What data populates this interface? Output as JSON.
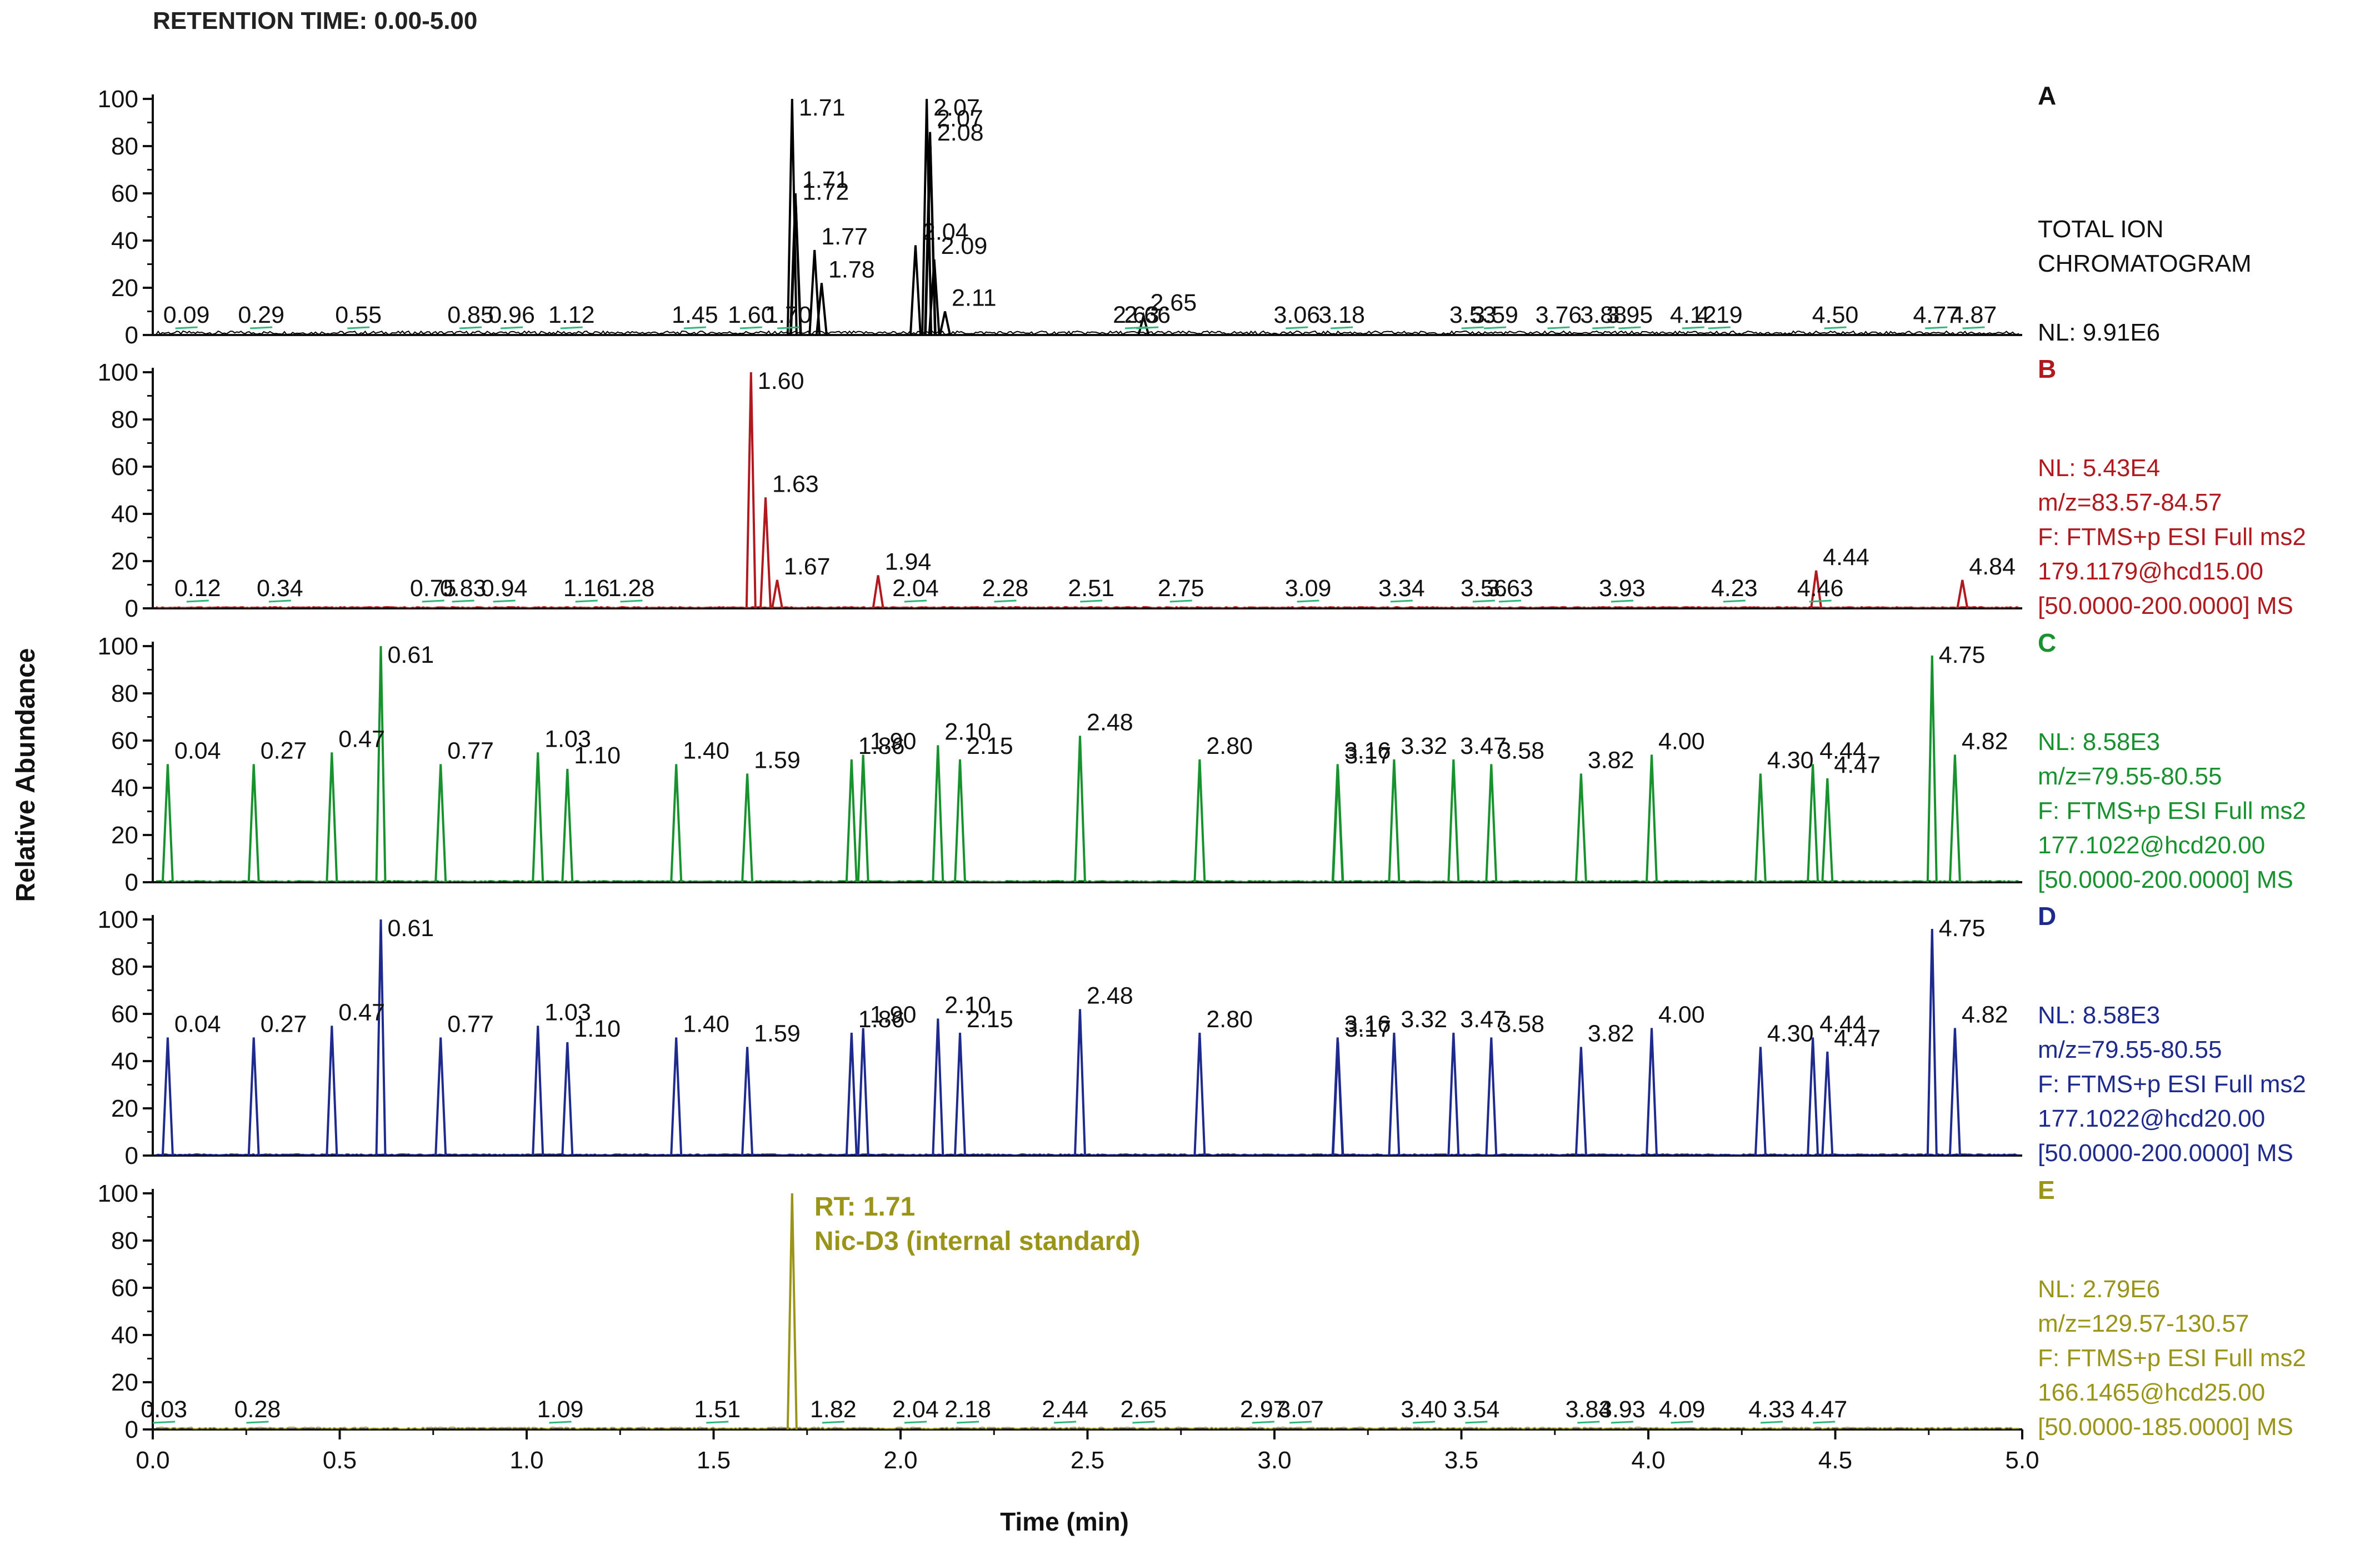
{
  "title": "RETENTION TIME: 0.00-5.00",
  "chart_data": {
    "type": "line",
    "xlabel": "Time (min)",
    "ylabel": "Relative Abundance",
    "xlim": [
      0.0,
      5.0
    ],
    "x_ticks": [
      "0.0",
      "0.5",
      "1.0",
      "1.5",
      "2.0",
      "2.5",
      "3.0",
      "3.5",
      "4.0",
      "4.5",
      "5.0"
    ],
    "ylim": [
      0,
      100
    ],
    "y_ticks": [
      "0",
      "20",
      "40",
      "60",
      "80",
      "100"
    ],
    "panels": [
      {
        "id": "A",
        "color": "#000000",
        "info": [
          "TOTAL ION",
          "CHROMATOGRAM",
          "",
          "NL: 9.91E6"
        ],
        "peaks": [
          {
            "rt": 1.71,
            "height": 100,
            "label": "1.71"
          },
          {
            "rt": 1.71,
            "height": 60,
            "label": "1.71"
          },
          {
            "rt": 1.72,
            "height": 55,
            "label": "1.72"
          },
          {
            "rt": 1.77,
            "height": 36,
            "label": "1.77"
          },
          {
            "rt": 1.78,
            "height": 22,
            "label": "1.78"
          },
          {
            "rt": 2.04,
            "height": 38,
            "label": "2.04"
          },
          {
            "rt": 2.07,
            "height": 100,
            "label": "2.07"
          },
          {
            "rt": 2.07,
            "height": 86,
            "label": "2.07"
          },
          {
            "rt": 2.08,
            "height": 80,
            "label": "2.08"
          },
          {
            "rt": 2.09,
            "height": 32,
            "label": "2.09"
          },
          {
            "rt": 2.11,
            "height": 10,
            "label": "2.11"
          },
          {
            "rt": 2.65,
            "height": 8,
            "label": "2.65"
          }
        ],
        "baseline_labels": [
          "0.09",
          "0.29",
          "0.55",
          "0.85",
          "0.96",
          "1.12",
          "1.45",
          "1.60",
          "1.70",
          "2.63",
          "2.66",
          "3.06",
          "3.18",
          "3.53",
          "3.59",
          "3.76",
          "3.88",
          "3.95",
          "4.12",
          "4.19",
          "4.50",
          "4.77",
          "4.87"
        ]
      },
      {
        "id": "B",
        "color": "#b0191e",
        "info": [
          "NL: 5.43E4",
          "m/z=83.57-84.57",
          "F: FTMS+p ESI Full ms2",
          "179.1179@hcd15.00",
          "[50.0000-200.0000] MS"
        ],
        "peaks": [
          {
            "rt": 1.6,
            "height": 100,
            "label": "1.60"
          },
          {
            "rt": 1.63,
            "height": 47,
            "label": "1.63"
          },
          {
            "rt": 1.67,
            "height": 12,
            "label": "1.67"
          },
          {
            "rt": 1.94,
            "height": 14,
            "label": "1.94"
          },
          {
            "rt": 4.44,
            "height": 16,
            "label": "4.44"
          },
          {
            "rt": 4.84,
            "height": 12,
            "label": "4.84"
          }
        ],
        "baseline_labels": [
          "0.12",
          "0.34",
          "0.75",
          "0.83",
          "0.94",
          "1.16",
          "1.28",
          "2.04",
          "2.28",
          "2.51",
          "2.75",
          "3.09",
          "3.34",
          "3.56",
          "3.63",
          "3.93",
          "4.23",
          "4.46"
        ]
      },
      {
        "id": "C",
        "color": "#18922f",
        "info": [
          "NL: 8.58E3",
          "m/z=79.55-80.55",
          "F: FTMS+p ESI Full ms2",
          "177.1022@hcd20.00",
          "[50.0000-200.0000] MS"
        ],
        "peaks": [
          {
            "rt": 0.61,
            "height": 100,
            "label": "0.61"
          },
          {
            "rt": 4.75,
            "height": 96,
            "label": "4.75"
          },
          {
            "rt": 0.04,
            "height": 50,
            "label": "0.04"
          },
          {
            "rt": 0.27,
            "height": 50,
            "label": "0.27"
          },
          {
            "rt": 0.47,
            "height": 55,
            "label": "0.47"
          },
          {
            "rt": 0.77,
            "height": 50,
            "label": "0.77"
          },
          {
            "rt": 1.03,
            "height": 55,
            "label": "1.03"
          },
          {
            "rt": 1.1,
            "height": 48,
            "label": "1.10"
          },
          {
            "rt": 1.4,
            "height": 50,
            "label": "1.40"
          },
          {
            "rt": 1.59,
            "height": 46,
            "label": "1.59"
          },
          {
            "rt": 1.86,
            "height": 52,
            "label": "1.86"
          },
          {
            "rt": 1.9,
            "height": 54,
            "label": "1.90"
          },
          {
            "rt": 2.1,
            "height": 58,
            "label": "2.10"
          },
          {
            "rt": 2.15,
            "height": 52,
            "label": "2.15"
          },
          {
            "rt": 2.48,
            "height": 62,
            "label": "2.48"
          },
          {
            "rt": 2.8,
            "height": 52,
            "label": "2.80"
          },
          {
            "rt": 3.16,
            "height": 50,
            "label": "3.16"
          },
          {
            "rt": 3.17,
            "height": 48,
            "label": "3.17"
          },
          {
            "rt": 3.32,
            "height": 52,
            "label": "3.32"
          },
          {
            "rt": 3.47,
            "height": 52,
            "label": "3.47"
          },
          {
            "rt": 3.58,
            "height": 50,
            "label": "3.58"
          },
          {
            "rt": 3.82,
            "height": 46,
            "label": "3.82"
          },
          {
            "rt": 4.0,
            "height": 54,
            "label": "4.00"
          },
          {
            "rt": 4.3,
            "height": 46,
            "label": "4.30"
          },
          {
            "rt": 4.44,
            "height": 50,
            "label": "4.44"
          },
          {
            "rt": 4.47,
            "height": 44,
            "label": "4.47"
          },
          {
            "rt": 4.82,
            "height": 54,
            "label": "4.82"
          }
        ],
        "baseline_labels": []
      },
      {
        "id": "D",
        "color": "#1e2a8c",
        "info": [
          "NL: 8.58E3",
          "m/z=79.55-80.55",
          "F: FTMS+p ESI Full ms2",
          "177.1022@hcd20.00",
          "[50.0000-200.0000] MS"
        ],
        "peaks": [
          {
            "rt": 0.61,
            "height": 100,
            "label": "0.61"
          },
          {
            "rt": 4.75,
            "height": 96,
            "label": "4.75"
          },
          {
            "rt": 0.04,
            "height": 50,
            "label": "0.04"
          },
          {
            "rt": 0.27,
            "height": 50,
            "label": "0.27"
          },
          {
            "rt": 0.47,
            "height": 55,
            "label": "0.47"
          },
          {
            "rt": 0.77,
            "height": 50,
            "label": "0.77"
          },
          {
            "rt": 1.03,
            "height": 55,
            "label": "1.03"
          },
          {
            "rt": 1.1,
            "height": 48,
            "label": "1.10"
          },
          {
            "rt": 1.4,
            "height": 50,
            "label": "1.40"
          },
          {
            "rt": 1.59,
            "height": 46,
            "label": "1.59"
          },
          {
            "rt": 1.86,
            "height": 52,
            "label": "1.86"
          },
          {
            "rt": 1.9,
            "height": 54,
            "label": "1.90"
          },
          {
            "rt": 2.1,
            "height": 58,
            "label": "2.10"
          },
          {
            "rt": 2.15,
            "height": 52,
            "label": "2.15"
          },
          {
            "rt": 2.48,
            "height": 62,
            "label": "2.48"
          },
          {
            "rt": 2.8,
            "height": 52,
            "label": "2.80"
          },
          {
            "rt": 3.16,
            "height": 50,
            "label": "3.16"
          },
          {
            "rt": 3.17,
            "height": 48,
            "label": "3.17"
          },
          {
            "rt": 3.32,
            "height": 52,
            "label": "3.32"
          },
          {
            "rt": 3.47,
            "height": 52,
            "label": "3.47"
          },
          {
            "rt": 3.58,
            "height": 50,
            "label": "3.58"
          },
          {
            "rt": 3.82,
            "height": 46,
            "label": "3.82"
          },
          {
            "rt": 4.0,
            "height": 54,
            "label": "4.00"
          },
          {
            "rt": 4.3,
            "height": 46,
            "label": "4.30"
          },
          {
            "rt": 4.44,
            "height": 50,
            "label": "4.44"
          },
          {
            "rt": 4.47,
            "height": 44,
            "label": "4.47"
          },
          {
            "rt": 4.82,
            "height": 54,
            "label": "4.82"
          }
        ],
        "baseline_labels": []
      },
      {
        "id": "E",
        "color": "#9a9418",
        "info": [
          "NL: 2.79E6",
          "m/z=129.57-130.57",
          "F: FTMS+p ESI Full ms2",
          "166.1465@hcd25.00",
          "[50.0000-185.0000] MS"
        ],
        "annotation": [
          "RT: 1.71",
          "Nic-D3 (internal standard)"
        ],
        "peaks": [
          {
            "rt": 1.71,
            "height": 100,
            "label": ""
          }
        ],
        "baseline_labels": [
          "0.03",
          "0.28",
          "1.09",
          "1.51",
          "1.82",
          "2.04",
          "2.18",
          "2.44",
          "2.65",
          "2.97",
          "3.07",
          "3.40",
          "3.54",
          "3.84",
          "3.93",
          "4.09",
          "4.33",
          "4.47"
        ]
      }
    ]
  }
}
